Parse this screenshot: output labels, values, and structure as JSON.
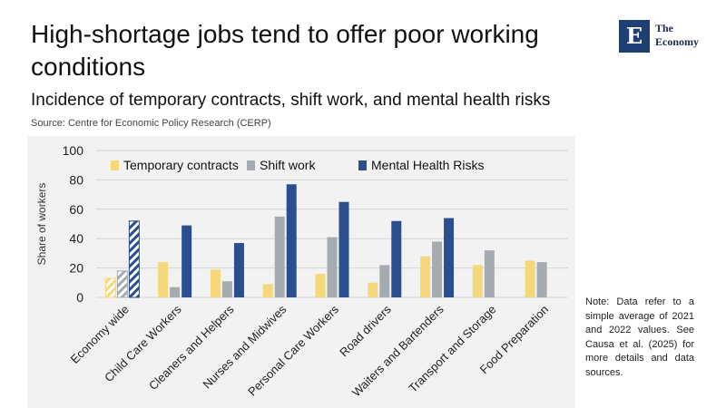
{
  "header": {
    "title": "High-shortage jobs tend to offer poor working conditions",
    "subtitle": "Incidence of temporary contracts, shift work, and mental health risks",
    "source": "Source: Centre for Economic Policy Research (CERP)"
  },
  "logo": {
    "letter": "E",
    "text": "The Economy"
  },
  "note": "Note: Data refer to a simple average of 2021 and 2022 values. See Causa et al. (2025) for more details and data sources.",
  "colors": {
    "temporary": "#f5d87a",
    "shift": "#a6abb2",
    "mental": "#2b4f8e",
    "chart_bg": "#f2f2f2",
    "grid": "#d4d4d4"
  },
  "chart_data": {
    "type": "bar",
    "title": "",
    "xlabel": "",
    "ylabel": "Share of workers",
    "ylim": [
      0,
      100
    ],
    "yticks": [
      0,
      20,
      40,
      60,
      80,
      100
    ],
    "legend_position": "top",
    "categories": [
      "Economy wide",
      "Child Care Workers",
      "Cleaners and Helpers",
      "Nurses and Midwives",
      "Personal Care Workers",
      "Road drivers",
      "Waiters and Bartenders",
      "Transport and Storage",
      "Food Preparation"
    ],
    "series": [
      {
        "name": "Temporary contracts",
        "key": "temporary",
        "values": [
          13,
          24,
          19,
          9,
          16,
          10,
          28,
          22,
          25
        ]
      },
      {
        "name": "Shift work",
        "key": "shift",
        "values": [
          18,
          7,
          11,
          55,
          41,
          22,
          38,
          32,
          24
        ]
      },
      {
        "name": "Mental Health Risks",
        "key": "mental",
        "values": [
          52,
          49,
          37,
          77,
          65,
          52,
          54,
          null,
          null
        ]
      }
    ]
  }
}
